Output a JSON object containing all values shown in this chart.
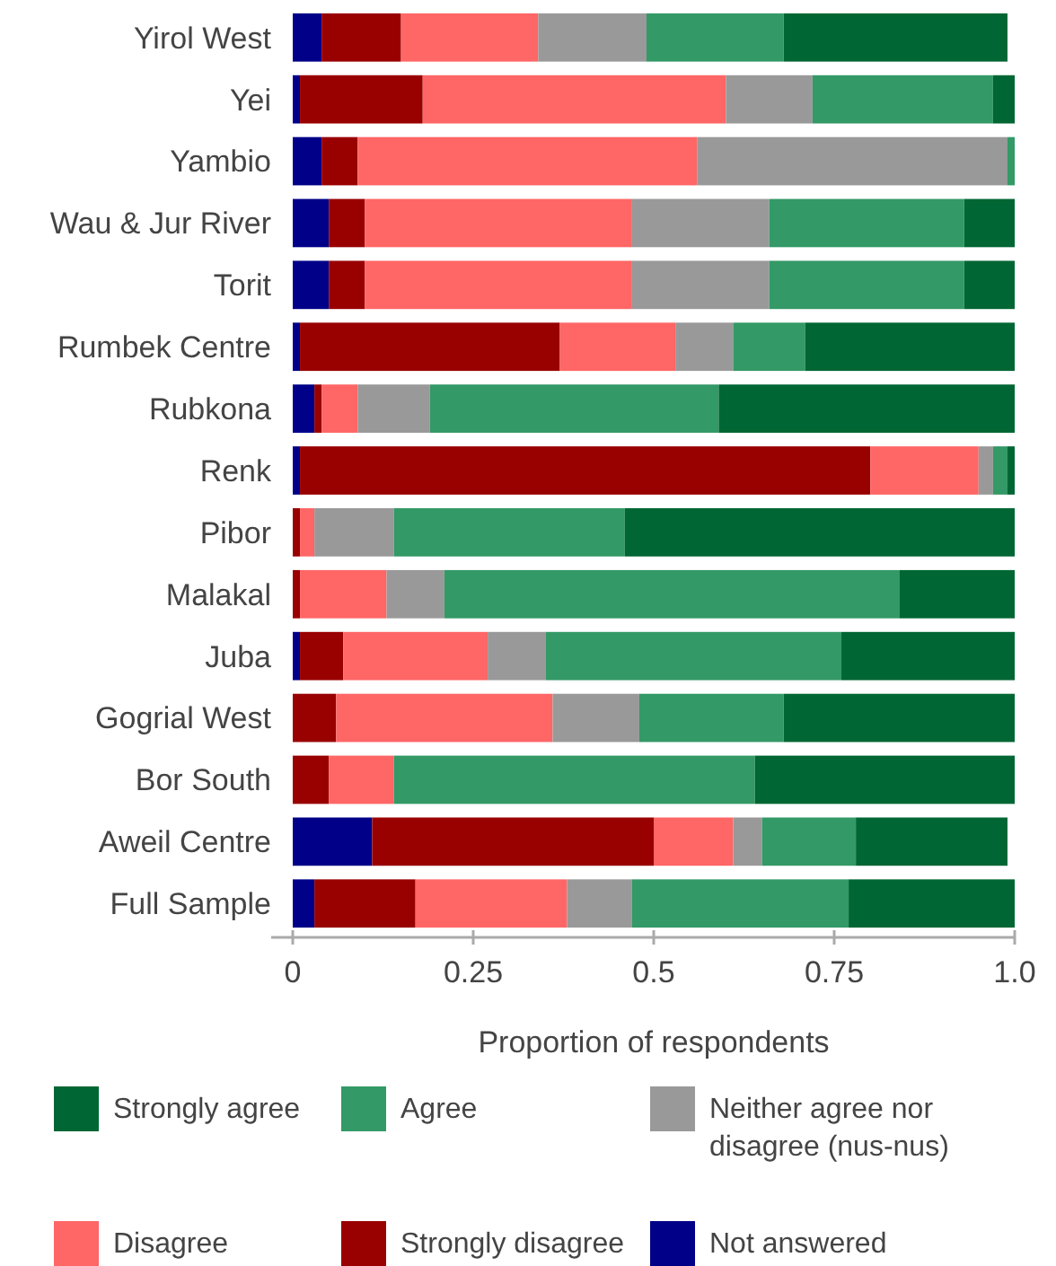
{
  "chart_data": {
    "type": "bar",
    "orientation": "horizontal",
    "stacked": true,
    "categories": [
      "Yirol West",
      "Yei",
      "Yambio",
      "Wau & Jur River",
      "Torit",
      "Rumbek Centre",
      "Rubkona",
      "Renk",
      "Pibor",
      "Malakal",
      "Juba",
      "Gogrial West",
      "Bor South",
      "Aweil Centre",
      "Full Sample"
    ],
    "series": [
      {
        "name": "Not answered",
        "color": "#000088",
        "values": [
          0.04,
          0.01,
          0.04,
          0.05,
          0.05,
          0.01,
          0.03,
          0.01,
          0,
          0,
          0.01,
          0,
          0,
          0.11,
          0.03
        ]
      },
      {
        "name": "Strongly disagree",
        "color": "#990000",
        "values": [
          0.11,
          0.17,
          0.05,
          0.05,
          0.05,
          0.36,
          0.01,
          0.79,
          0.01,
          0.01,
          0.06,
          0.06,
          0.05,
          0.39,
          0.14
        ]
      },
      {
        "name": "Disagree",
        "color": "#ff6666",
        "values": [
          0.19,
          0.42,
          0.47,
          0.37,
          0.37,
          0.16,
          0.05,
          0.15,
          0.02,
          0.12,
          0.2,
          0.3,
          0.09,
          0.11,
          0.21
        ]
      },
      {
        "name": "Neither agree nor disagree (nus-nus)",
        "color": "#999999",
        "values": [
          0.15,
          0.12,
          0.43,
          0.19,
          0.19,
          0.08,
          0.1,
          0.02,
          0.11,
          0.08,
          0.08,
          0.12,
          0,
          0.04,
          0.09
        ]
      },
      {
        "name": "Agree",
        "color": "#339966",
        "values": [
          0.19,
          0.25,
          0.01,
          0.27,
          0.27,
          0.1,
          0.4,
          0.02,
          0.32,
          0.63,
          0.41,
          0.2,
          0.5,
          0.13,
          0.3
        ]
      },
      {
        "name": "Strongly agree",
        "color": "#006633",
        "values": [
          0.31,
          0.03,
          0,
          0.07,
          0.07,
          0.29,
          0.41,
          0.01,
          0.54,
          0.16,
          0.24,
          0.32,
          0.36,
          0.21,
          0.23
        ]
      }
    ],
    "xlim": [
      0,
      1
    ],
    "xticks": [
      0,
      0.25,
      0.5,
      {
        "value": 1,
        "label": "1.0"
      },
      0.75
    ],
    "xlabel": "Proportion of respondents",
    "legend": "bottom",
    "grid": false
  }
}
